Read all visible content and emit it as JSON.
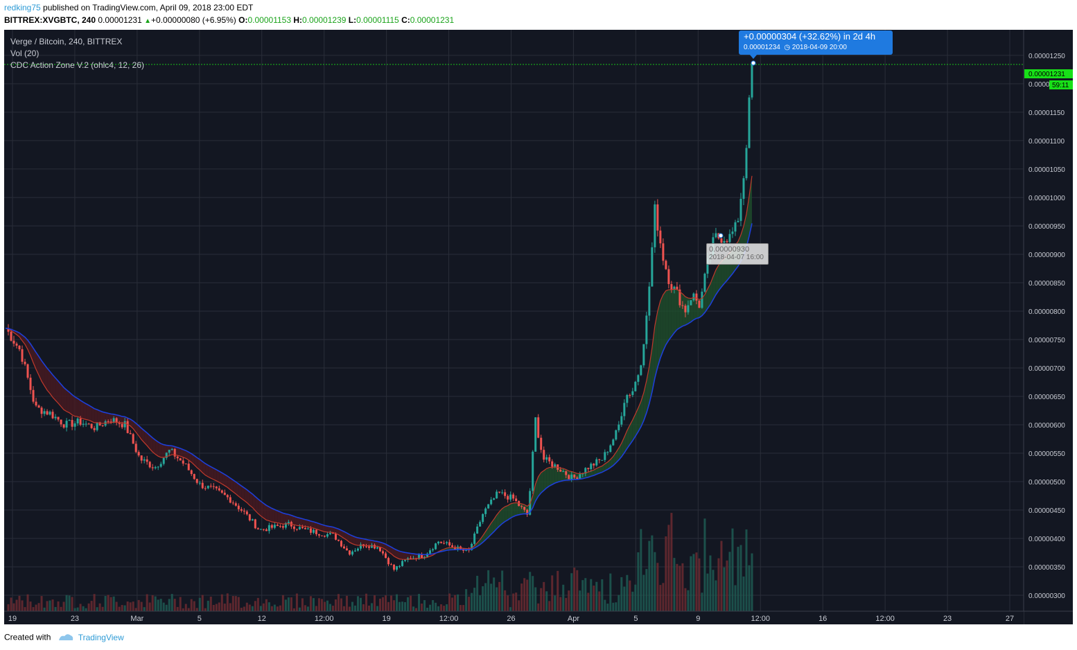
{
  "header": {
    "user": "redking75",
    "published": " published on TradingView.com, April 09, 2018 23:00 EDT",
    "symbol": "BITTREX:XVGBTC, 240",
    "last": "0.00001231",
    "change": "+0.00000080 (+6.95%)",
    "o_label": "O:",
    "o_value": "0.00001153",
    "h_label": "H:",
    "h_value": "0.00001239",
    "l_label": "L:",
    "l_value": "0.00001115",
    "c_label": "C:",
    "c_value": "0.00001231"
  },
  "legend": {
    "title": "Verge / Bitcoin, 240, BITTREX",
    "volume": "Vol (20)",
    "indicator": "CDC Action Zone V.2 (ohlc4, 12, 26)"
  },
  "measure": {
    "delta": "+0.00000304 (+32.62%)  in 2d 4h",
    "price": "0.00001234",
    "date": "2018-04-09  20:00"
  },
  "cursor": {
    "price": "0.00000930",
    "date": "2018-04-07 16:00"
  },
  "footer": {
    "created": "Created with",
    "brand": "TradingView"
  },
  "colors": {
    "background": "#131722",
    "grid": "#2a2e39",
    "up": "#26a69a",
    "down": "#ef5350",
    "fast_ema": "#c0392b",
    "slow_ema": "#1e3fd8",
    "zone_bull": "#1f4f2c",
    "zone_bear": "#4a1a22",
    "volume_ma": "#f0a35e",
    "price_label": "#18e018",
    "measure": "#1f7ae0"
  },
  "chart_data": {
    "type": "candlestick",
    "y_axis": {
      "ticks": [
        "0.00001250",
        "0.00001200",
        "0.00001150",
        "0.00001100",
        "0.00001050",
        "0.00001000",
        "0.00000950",
        "0.00000900",
        "0.00000850",
        "0.00000800",
        "0.00000750",
        "0.00000700",
        "0.00000650",
        "0.00000600",
        "0.00000550",
        "0.00000500",
        "0.00000450",
        "0.00000400",
        "0.00000350",
        "0.00000300"
      ],
      "range": [
        2.72e-06,
        1.295e-05
      ]
    },
    "x_axis": {
      "ticks": [
        "19",
        "23",
        "Mar",
        "5",
        "12",
        "12:00",
        "19",
        "12:00",
        "26",
        "Apr",
        "5",
        "9",
        "12:00",
        "16",
        "12:00",
        "23",
        "27"
      ]
    },
    "last_price_label": "0.00001231",
    "countdown_label": "59:11",
    "price_path_points": [
      [
        0,
        7.7e-06
      ],
      [
        0.02,
        7.3e-06
      ],
      [
        0.04,
        6.3e-06
      ],
      [
        0.06,
        6.2e-06
      ],
      [
        0.08,
        6e-06
      ],
      [
        0.1,
        6.05e-06
      ],
      [
        0.12,
        5.95e-06
      ],
      [
        0.14,
        6.1e-06
      ],
      [
        0.16,
        6e-06
      ],
      [
        0.18,
        5.4e-06
      ],
      [
        0.2,
        5.25e-06
      ],
      [
        0.22,
        5.55e-06
      ],
      [
        0.24,
        5.3e-06
      ],
      [
        0.26,
        4.95e-06
      ],
      [
        0.28,
        4.85e-06
      ],
      [
        0.3,
        4.7e-06
      ],
      [
        0.32,
        4.45e-06
      ],
      [
        0.34,
        4.15e-06
      ],
      [
        0.36,
        4.2e-06
      ],
      [
        0.38,
        4.25e-06
      ],
      [
        0.4,
        4.15e-06
      ],
      [
        0.42,
        4.1e-06
      ],
      [
        0.44,
        4.05e-06
      ],
      [
        0.46,
        3.75e-06
      ],
      [
        0.48,
        3.9e-06
      ],
      [
        0.5,
        3.85e-06
      ],
      [
        0.52,
        3.45e-06
      ],
      [
        0.54,
        3.65e-06
      ],
      [
        0.56,
        3.7e-06
      ],
      [
        0.58,
        3.95e-06
      ],
      [
        0.6,
        3.85e-06
      ],
      [
        0.62,
        3.75e-06
      ],
      [
        0.64,
        4.45e-06
      ],
      [
        0.66,
        4.8e-06
      ],
      [
        0.68,
        4.7e-06
      ],
      [
        0.7,
        4.4e-06
      ],
      [
        0.71,
        6.1e-06
      ],
      [
        0.72,
        5.4e-06
      ],
      [
        0.74,
        5.25e-06
      ],
      [
        0.76,
        5.05e-06
      ],
      [
        0.78,
        5.25e-06
      ],
      [
        0.8,
        5.4e-06
      ],
      [
        0.82,
        5.9e-06
      ],
      [
        0.83,
        6.5e-06
      ],
      [
        0.84,
        6.6e-06
      ],
      [
        0.85,
        7e-06
      ],
      [
        0.86,
        8e-06
      ],
      [
        0.87,
        9.8e-06
      ],
      [
        0.88,
        9e-06
      ],
      [
        0.89,
        8.5e-06
      ],
      [
        0.9,
        8.3e-06
      ],
      [
        0.91,
        8e-06
      ],
      [
        0.92,
        8.3e-06
      ],
      [
        0.93,
        8.1e-06
      ],
      [
        0.94,
        8.8e-06
      ],
      [
        0.95,
        9.3e-06
      ],
      [
        0.96,
        9.3e-06
      ],
      [
        0.97,
        9.3e-06
      ],
      [
        0.98,
        9.5e-06
      ],
      [
        0.99,
        1.05e-05
      ],
      [
        1.0,
        1.231e-05
      ]
    ]
  }
}
